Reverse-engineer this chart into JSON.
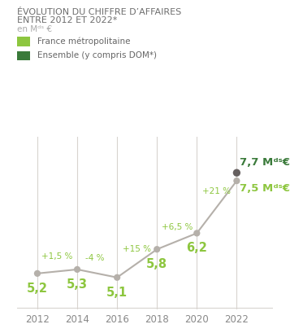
{
  "title_line1": "ÉVOLUTION DU CHIFFRE D’AFFAIRES",
  "title_line2": "ENTRE 2012 ET 2022*",
  "subtitle": "en Mᵈˢ €",
  "legend1_label": "France métropolitaine",
  "legend2_label": "Ensemble (y compris DOM*)",
  "years": [
    2012,
    2014,
    2016,
    2018,
    2020,
    2022
  ],
  "values_metro": [
    5.2,
    5.3,
    5.1,
    5.8,
    6.2,
    7.5
  ],
  "value_ensemble_2022": 7.7,
  "val_labels_early": [
    "5,2",
    "5,3",
    "5,1",
    "5,8",
    "6,2"
  ],
  "val_label_metro_2022": "7,5 Mᵈˢ€",
  "val_label_ens_2022": "7,7 Mᵈˢ€",
  "pct_labels": [
    "+1,5 %",
    "-4 %",
    "+15 %",
    "+6,5 %",
    "+21 %"
  ],
  "line_color": "#b5b0aa",
  "dot_color": "#b5b0aa",
  "dot_color_ensemble": "#666060",
  "light_green": "#8dc63f",
  "dark_green": "#3a7a3a",
  "legend1_color": "#8dc63f",
  "legend2_color": "#3a7a3a",
  "bg_color": "#ffffff",
  "grid_color": "#d8d4cf",
  "title_color": "#6e6e6e",
  "subtitle_color": "#aaaaaa",
  "tick_color": "#888888",
  "ylim": [
    4.3,
    8.6
  ],
  "xlim": [
    2011.0,
    2023.8
  ]
}
